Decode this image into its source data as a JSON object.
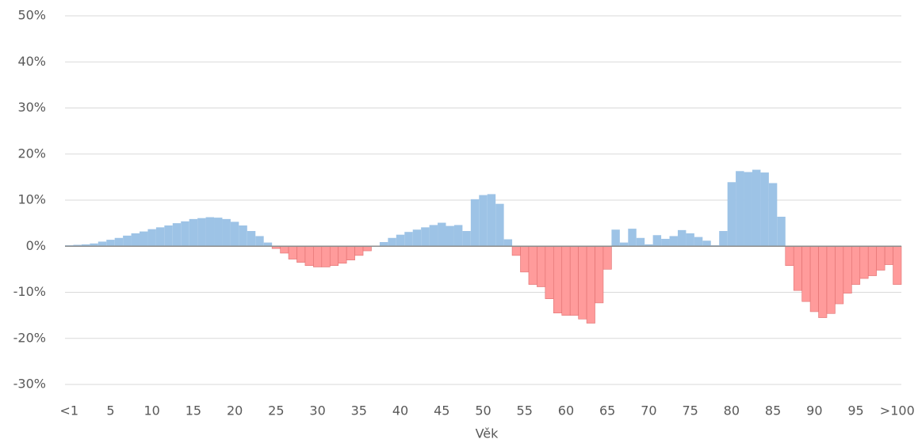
{
  "chart_data": {
    "type": "bar",
    "x_label": "Věk",
    "categories": [
      "<1",
      null,
      null,
      null,
      null,
      "5",
      null,
      null,
      null,
      null,
      "10",
      null,
      null,
      null,
      null,
      "15",
      null,
      null,
      null,
      null,
      "20",
      null,
      null,
      null,
      null,
      "25",
      null,
      null,
      null,
      null,
      "30",
      null,
      null,
      null,
      null,
      "35",
      null,
      null,
      null,
      null,
      "40",
      null,
      null,
      null,
      null,
      "45",
      null,
      null,
      null,
      null,
      "50",
      null,
      null,
      null,
      null,
      "55",
      null,
      null,
      null,
      null,
      "60",
      null,
      null,
      null,
      null,
      "65",
      null,
      null,
      null,
      null,
      "70",
      null,
      null,
      null,
      null,
      "75",
      null,
      null,
      null,
      null,
      "80",
      null,
      null,
      null,
      null,
      "85",
      null,
      null,
      null,
      null,
      "90",
      null,
      null,
      null,
      null,
      "95",
      null,
      null,
      null,
      null,
      ">100"
    ],
    "values": [
      0.2,
      0.3,
      0.4,
      0.6,
      1.0,
      1.4,
      1.8,
      2.3,
      2.8,
      3.2,
      3.7,
      4.1,
      4.5,
      5.0,
      5.4,
      5.9,
      6.1,
      6.3,
      6.2,
      5.9,
      5.3,
      4.5,
      3.3,
      2.2,
      0.8,
      -0.5,
      -1.5,
      -2.8,
      -3.5,
      -4.2,
      -4.5,
      -4.5,
      -4.2,
      -3.7,
      -3.0,
      -2.0,
      -1.0,
      0,
      0.9,
      1.8,
      2.5,
      3.1,
      3.6,
      4.1,
      4.6,
      5.1,
      4.4,
      4.6,
      3.3,
      10.2,
      11.1,
      11.3,
      9.2,
      1.5,
      -2.0,
      -5.6,
      -8.3,
      -8.8,
      -11.4,
      -14.5,
      -15.0,
      -15.0,
      -15.8,
      -16.7,
      -12.3,
      -5.0,
      3.6,
      0.8,
      3.8,
      1.8,
      0.4,
      2.4,
      1.6,
      2.2,
      3.5,
      2.8,
      2.0,
      1.2,
      0.2,
      3.3,
      13.9,
      16.3,
      16.1,
      16.6,
      16.0,
      13.7,
      6.4,
      -4.2,
      -9.6,
      -12.0,
      -14.2,
      -15.5,
      -14.6,
      -12.5,
      -10.2,
      -8.3,
      -7.0,
      -6.4,
      -5.2,
      -4.0,
      -8.3
    ],
    "positive_color": "#9dc3e6",
    "negative_color": "#ff9b9b",
    "ylim": [
      -30,
      50
    ],
    "yticks": [
      {
        "value": -30,
        "label": "-30%"
      },
      {
        "value": -20,
        "label": "-20%"
      },
      {
        "value": -10,
        "label": "-10%"
      },
      {
        "value": 0,
        "label": "0%"
      },
      {
        "value": 10,
        "label": "10%"
      },
      {
        "value": 20,
        "label": "20%"
      },
      {
        "value": 30,
        "label": "30%"
      },
      {
        "value": 40,
        "label": "40%"
      },
      {
        "value": 50,
        "label": "50%"
      }
    ],
    "grid": true
  }
}
